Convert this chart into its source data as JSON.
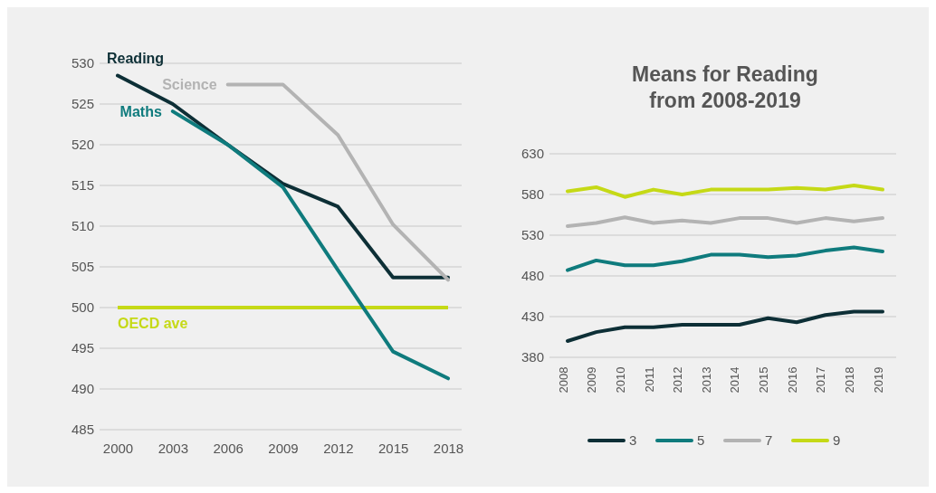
{
  "chart_data": [
    {
      "type": "line",
      "categories": [
        "2000",
        "2003",
        "2006",
        "2009",
        "2012",
        "2015",
        "2018"
      ],
      "ylim": [
        485,
        530
      ],
      "yticks": [
        485,
        490,
        495,
        500,
        505,
        510,
        515,
        520,
        525,
        530
      ],
      "grid": "y",
      "legend": false,
      "series": [
        {
          "name": "Reading",
          "color": "#0d2f36",
          "values": [
            528.5,
            525,
            520,
            515.2,
            512.4,
            503.7,
            503.7
          ]
        },
        {
          "name": "Maths",
          "color": "#0f7b7d",
          "values": [
            null,
            524.1,
            520,
            514.8,
            504.6,
            494.6,
            491.3
          ]
        },
        {
          "name": "Science",
          "color": "#b3b3b3",
          "values": [
            null,
            null,
            527.4,
            527.4,
            521.2,
            510.2,
            503.4
          ]
        }
      ],
      "ref_lines": [
        {
          "axis": "y",
          "value": 500,
          "label": "OECD ave",
          "color": "#c5d916"
        }
      ]
    },
    {
      "type": "line",
      "title": "Means for Reading from 2008-2019",
      "categories": [
        "2008",
        "2009",
        "2010",
        "2011",
        "2012",
        "2013",
        "2014",
        "2015",
        "2016",
        "2017",
        "2018",
        "2019"
      ],
      "ylim": [
        380,
        630
      ],
      "yticks": [
        380,
        430,
        480,
        530,
        580,
        630
      ],
      "grid": "y",
      "legend": "bottom",
      "series": [
        {
          "name": "3",
          "color": "#0d2f36",
          "values": [
            400,
            411,
            417,
            417,
            420,
            420,
            420,
            428,
            423,
            432,
            436,
            436
          ]
        },
        {
          "name": "5",
          "color": "#0f7b7d",
          "values": [
            487,
            499,
            493,
            493,
            498,
            506,
            506,
            503,
            505,
            511,
            515,
            510
          ]
        },
        {
          "name": "7",
          "color": "#b3b3b3",
          "values": [
            541,
            545,
            552,
            545,
            548,
            545,
            551,
            551,
            545,
            551,
            547,
            551
          ]
        },
        {
          "name": "9",
          "color": "#c5d916",
          "values": [
            584,
            589,
            577,
            586,
            580,
            586,
            586,
            586,
            588,
            586,
            591,
            586
          ]
        }
      ]
    }
  ]
}
